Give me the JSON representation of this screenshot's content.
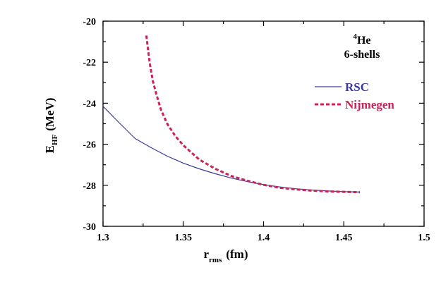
{
  "chart_data": {
    "type": "line",
    "title": "",
    "xlabel": {
      "main": "r",
      "sub": "rms",
      "unit": "(fm)"
    },
    "ylabel": {
      "main": "E",
      "sub": "HF",
      "unit": "(MeV)"
    },
    "xlim": [
      1.3,
      1.5
    ],
    "ylim": [
      -30,
      -20
    ],
    "x_ticks": [
      1.3,
      1.35,
      1.4,
      1.45,
      1.5
    ],
    "x_tick_labels": [
      "1.3",
      "1.35",
      "1.4",
      "1.45",
      "1.5"
    ],
    "y_ticks": [
      -20,
      -22,
      -24,
      -26,
      -28,
      -30
    ],
    "y_tick_labels": [
      "-20",
      "-22",
      "-24",
      "-26",
      "-28",
      "-30"
    ],
    "grid": false,
    "annotation": {
      "nucleus_mass": "4",
      "nucleus_symbol": "He",
      "shells": "6-shells"
    },
    "series": [
      {
        "name": "RSC",
        "color": "#3a3a9c",
        "style": "solid",
        "x": [
          1.3,
          1.31,
          1.32,
          1.33,
          1.34,
          1.35,
          1.36,
          1.37,
          1.38,
          1.39,
          1.4,
          1.41,
          1.42,
          1.43,
          1.44,
          1.45,
          1.46
        ],
        "y": [
          -24.15,
          -24.95,
          -25.72,
          -26.17,
          -26.58,
          -26.92,
          -27.2,
          -27.44,
          -27.65,
          -27.82,
          -27.97,
          -28.08,
          -28.17,
          -28.23,
          -28.28,
          -28.31,
          -28.33
        ]
      },
      {
        "name": "Nijmegen",
        "color": "#cc2255",
        "style": "dashed",
        "x": [
          1.327,
          1.329,
          1.331,
          1.333,
          1.336,
          1.34,
          1.345,
          1.35,
          1.36,
          1.37,
          1.38,
          1.39,
          1.4,
          1.41,
          1.42,
          1.43,
          1.44,
          1.45,
          1.46
        ],
        "y": [
          -20.7,
          -22.0,
          -22.9,
          -23.5,
          -24.3,
          -25.0,
          -25.6,
          -26.05,
          -26.75,
          -27.2,
          -27.55,
          -27.78,
          -27.98,
          -28.12,
          -28.2,
          -28.26,
          -28.3,
          -28.32,
          -28.34
        ]
      }
    ]
  }
}
